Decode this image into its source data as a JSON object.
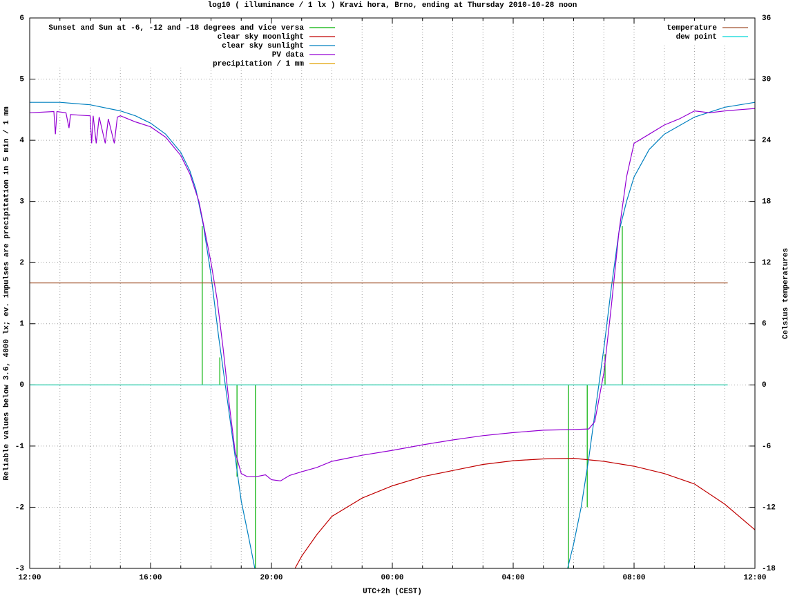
{
  "chart_data": {
    "type": "line",
    "title": "log10 ( illuminance / 1 lx ) Kravi hora, Brno, ending at Thursday 2010-10-28 noon",
    "xlabel": "UTC+2h (CEST)",
    "ylabel": "Reliable values below 3.6, 4000 lx; ev. impulses are precipitation in 5 min / 1 mm",
    "y2label": "Celsius temperatures",
    "xlim": [
      0,
      24
    ],
    "xticks": [
      {
        "value": 0,
        "label": "12:00"
      },
      {
        "value": 4,
        "label": "16:00"
      },
      {
        "value": 8,
        "label": "20:00"
      },
      {
        "value": 12,
        "label": "00:00"
      },
      {
        "value": 16,
        "label": "04:00"
      },
      {
        "value": 20,
        "label": "08:00"
      },
      {
        "value": 24,
        "label": "12:00"
      }
    ],
    "xminorticks": [
      1,
      2,
      3,
      5,
      6,
      7,
      9,
      10,
      11,
      13,
      14,
      15,
      17,
      18,
      19,
      21,
      22,
      23
    ],
    "ylim": [
      -3,
      6
    ],
    "yticks": [
      -3,
      -2,
      -1,
      0,
      1,
      2,
      3,
      4,
      5,
      6
    ],
    "y2lim": [
      -18,
      36
    ],
    "y2ticks": [
      -18,
      -12,
      -6,
      0,
      6,
      12,
      18,
      24,
      30,
      36
    ],
    "grid": true,
    "legend": "top-left",
    "series": [
      {
        "name": "Sunset and Sun at -6, -12 and -18 degrees and vice versa",
        "color": "#00b000",
        "style": "impulses",
        "x": [
          5.71,
          6.29,
          6.86,
          7.47,
          17.83,
          18.45,
          19.04,
          19.61
        ],
        "values": [
          2.6,
          0.45,
          -1.5,
          -3,
          -3,
          -2.0,
          0.5,
          2.6
        ]
      },
      {
        "name": "clear sky moonlight",
        "color": "#c00000",
        "x": [
          8.78,
          9.0,
          9.5,
          10.0,
          11,
          12,
          13,
          14,
          15,
          16,
          17,
          18,
          19,
          20,
          21,
          22,
          23,
          24
        ],
        "values": [
          -3,
          -2.8,
          -2.45,
          -2.15,
          -1.85,
          -1.65,
          -1.5,
          -1.4,
          -1.3,
          -1.24,
          -1.21,
          -1.2,
          -1.25,
          -1.33,
          -1.45,
          -1.62,
          -1.95,
          -2.37
        ]
      },
      {
        "name": "clear sky sunlight",
        "color": "#0080c0",
        "x": [
          0,
          1,
          2,
          3,
          3.5,
          4,
          4.5,
          5,
          5.3,
          5.5,
          5.75,
          6,
          6.25,
          6.5,
          6.75,
          7,
          7.25,
          7.45,
          12,
          17.8,
          18,
          18.25,
          18.5,
          18.75,
          19,
          19.25,
          19.5,
          19.75,
          20,
          20.5,
          21,
          22,
          23,
          24
        ],
        "values": [
          4.62,
          4.62,
          4.58,
          4.48,
          4.4,
          4.28,
          4.1,
          3.8,
          3.5,
          3.2,
          2.6,
          1.8,
          0.8,
          -0.1,
          -1.0,
          -1.9,
          -2.5,
          -3,
          null,
          -3,
          -2.6,
          -2.0,
          -1.2,
          -0.3,
          0.6,
          1.6,
          2.5,
          3.0,
          3.4,
          3.85,
          4.1,
          4.38,
          4.54,
          4.62
        ]
      },
      {
        "name": "PV data",
        "color": "#9400d3",
        "x": [
          0,
          0.8,
          0.85,
          0.9,
          1.2,
          1.3,
          1.35,
          2.0,
          2.05,
          2.1,
          2.2,
          2.3,
          2.5,
          2.6,
          2.8,
          2.9,
          3.0,
          3.5,
          4,
          4.5,
          5,
          5.3,
          5.6,
          5.8,
          6.0,
          6.2,
          6.4,
          6.6,
          6.8,
          7.0,
          7.2,
          7.5,
          7.8,
          8.0,
          8.3,
          8.6,
          9,
          9.5,
          10,
          10.5,
          11,
          12,
          13,
          14,
          15,
          16,
          17,
          18,
          18.5,
          18.7,
          19,
          19.25,
          19.5,
          19.75,
          20,
          20.5,
          21,
          21.5,
          22,
          22.5,
          23,
          23.5,
          24
        ],
        "values": [
          4.45,
          4.47,
          4.1,
          4.47,
          4.45,
          4.2,
          4.42,
          4.4,
          3.95,
          4.4,
          3.95,
          4.38,
          3.95,
          4.35,
          3.95,
          4.38,
          4.4,
          4.3,
          4.22,
          4.05,
          3.75,
          3.45,
          3.0,
          2.5,
          2.0,
          1.4,
          0.6,
          -0.3,
          -1.1,
          -1.45,
          -1.5,
          -1.5,
          -1.47,
          -1.55,
          -1.57,
          -1.48,
          -1.42,
          -1.35,
          -1.25,
          -1.2,
          -1.15,
          -1.07,
          -0.98,
          -0.9,
          -0.83,
          -0.78,
          -0.74,
          -0.73,
          -0.72,
          -0.6,
          0.2,
          1.3,
          2.5,
          3.4,
          3.95,
          4.1,
          4.25,
          4.35,
          4.48,
          4.45,
          4.48,
          4.5,
          4.52
        ]
      },
      {
        "name": "precipitation / 1 mm",
        "color": "#e0a000",
        "x": [
          0,
          23.1
        ],
        "values": [
          0,
          0
        ]
      },
      {
        "name": "temperature",
        "color": "#a0522d",
        "axis": "y2",
        "x": [
          0,
          23.1
        ],
        "values": [
          10,
          10
        ]
      },
      {
        "name": "dew point",
        "color": "#00d8d8",
        "axis": "y2",
        "x": [
          0,
          23.1
        ],
        "values": [
          0,
          0
        ]
      }
    ]
  }
}
